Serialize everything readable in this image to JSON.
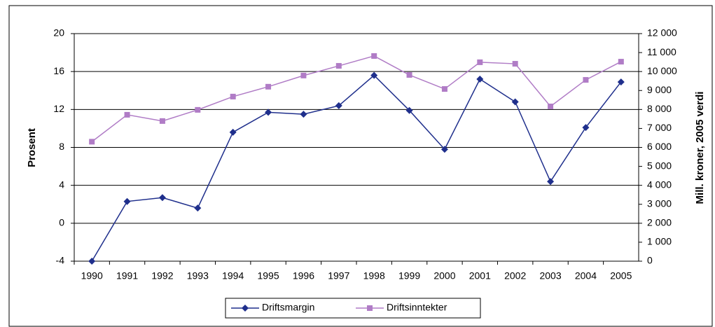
{
  "chart_data": {
    "type": "line",
    "categories": [
      "1990",
      "1991",
      "1992",
      "1993",
      "1994",
      "1995",
      "1996",
      "1997",
      "1998",
      "1999",
      "2000",
      "2001",
      "2002",
      "2003",
      "2004",
      "2005"
    ],
    "series": [
      {
        "name": "Driftsmargin",
        "color": "#1f2f8c",
        "values": [
          -4,
          2.3,
          2.7,
          1.6,
          9.6,
          11.7,
          11.5,
          12.4,
          15.6,
          11.9,
          7.8,
          15.2,
          12.8,
          4.4,
          10.1,
          14.9
        ]
      },
      {
        "name": "Driftsinntekter",
        "color": "#b07cc6",
        "axis": "y2",
        "values": [
          6300,
          7720,
          7390,
          7980,
          8680,
          9200,
          9790,
          10300,
          10820,
          9820,
          9080,
          10490,
          10410,
          8160,
          9560,
          10520
        ]
      }
    ],
    "ylabel": "Prosent",
    "y2label": "Mill. kroner, 2005 verdi",
    "ylim": [
      -4,
      20
    ],
    "yticks": [
      -4,
      0,
      4,
      8,
      12,
      16,
      20
    ],
    "y2lim": [
      0,
      12000
    ],
    "y2ticks": [
      0,
      {
        "value": 1000,
        "label": "1 000"
      },
      {
        "value": 2000,
        "label": "2 000"
      },
      {
        "value": 3000,
        "label": "3 000"
      },
      {
        "value": 4000,
        "label": "4 000"
      },
      {
        "value": 5000,
        "label": "5 000"
      },
      {
        "value": 6000,
        "label": "6 000"
      },
      {
        "value": 7000,
        "label": "7 000"
      },
      {
        "value": 8000,
        "label": "8 000"
      },
      {
        "value": 9000,
        "label": "9 000"
      },
      {
        "value": 10000,
        "label": "10 000"
      },
      {
        "value": 11000,
        "label": "11 000"
      },
      {
        "value": 12000,
        "label": "12 000"
      }
    ],
    "grid": true,
    "legend": "bottom"
  }
}
